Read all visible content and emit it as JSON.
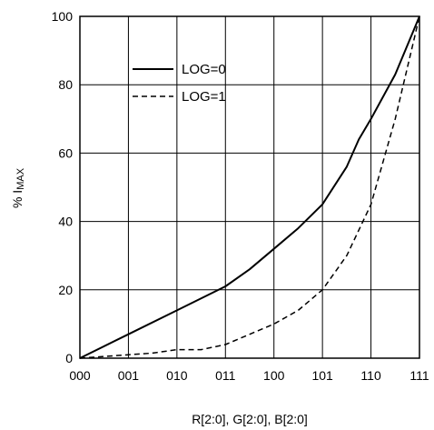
{
  "chart_data": {
    "type": "line",
    "xlabel": "R[2:0], G[2:0], B[2:0]",
    "ylabel_prefix": "% I",
    "ylabel_subscript": "MAX",
    "categories": [
      "000",
      "001",
      "010",
      "011",
      "100",
      "101",
      "110",
      "111"
    ],
    "x_positions": [
      0,
      1,
      2,
      3,
      4,
      5,
      6,
      7
    ],
    "ylim": [
      0,
      100
    ],
    "yticks": [
      0,
      20,
      40,
      60,
      80,
      100
    ],
    "grid": true,
    "legend_position": "upper-left",
    "series": [
      {
        "name": "LOG=0",
        "style": "solid",
        "x": [
          0,
          1,
          2,
          3,
          3.5,
          4,
          4.5,
          5,
          5.5,
          5.75,
          6,
          6.5,
          7
        ],
        "y": [
          0,
          7,
          14,
          21,
          26,
          32,
          38,
          45,
          56,
          64,
          70,
          83,
          100
        ]
      },
      {
        "name": "LOG=1",
        "style": "dashed",
        "x": [
          0,
          1,
          1.5,
          2,
          2.5,
          3,
          3.5,
          4,
          4.5,
          5,
          5.5,
          6,
          6.5,
          7
        ],
        "y": [
          0,
          1,
          1.5,
          2.5,
          2.5,
          4,
          7,
          10,
          14,
          20,
          30,
          45,
          70,
          100
        ]
      }
    ]
  }
}
